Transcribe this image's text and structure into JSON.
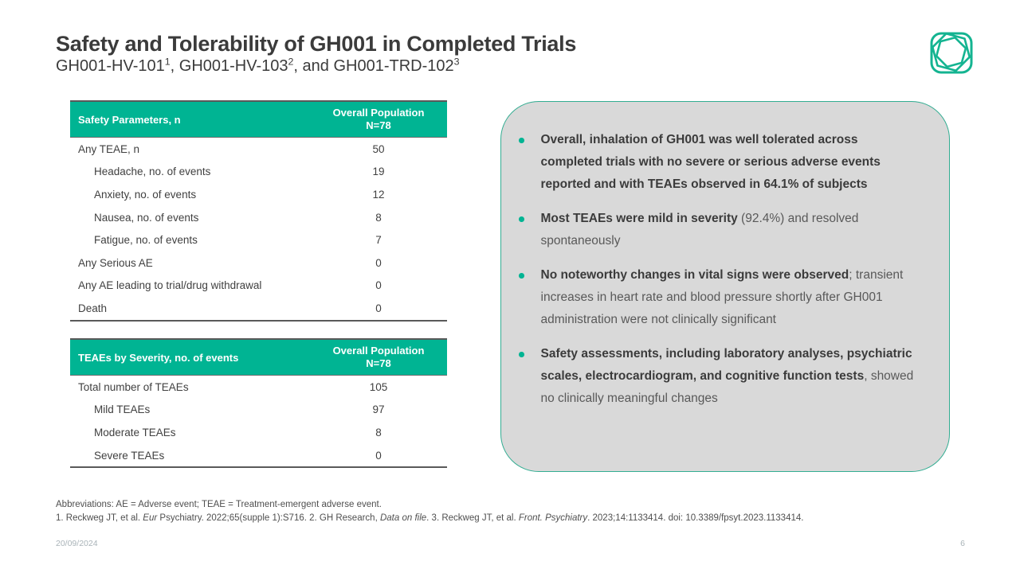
{
  "colors": {
    "accent": "#00B493",
    "callout_fill": "#D9D9D9",
    "callout_border": "#33AD92",
    "text_dark": "#3B3B3B",
    "text_body": "#595959"
  },
  "header": {
    "title": "Safety and Tolerability of GH001 in Completed Trials",
    "subtitle_segments": [
      {
        "t": "GH001-HV-101"
      },
      {
        "t": "1",
        "sup": true
      },
      {
        "t": ", GH001-HV-103"
      },
      {
        "t": "2",
        "sup": true
      },
      {
        "t": ", and GH001-TRD-102"
      },
      {
        "t": "3",
        "sup": true
      }
    ],
    "logo_name": "gh-research-logo"
  },
  "tables": [
    {
      "header": {
        "col1": "Safety Parameters, n",
        "col2_line1": "Overall Population",
        "col2_line2": "N=78"
      },
      "rows": [
        {
          "label": "Any TEAE, n",
          "value": "50",
          "indent": false
        },
        {
          "label": "Headache, no. of events",
          "value": "19",
          "indent": true
        },
        {
          "label": "Anxiety, no. of events",
          "value": "12",
          "indent": true
        },
        {
          "label": "Nausea, no. of events",
          "value": "8",
          "indent": true
        },
        {
          "label": "Fatigue, no. of events",
          "value": "7",
          "indent": true
        },
        {
          "label": "Any Serious AE",
          "value": "0",
          "indent": false
        },
        {
          "label": "Any AE leading to trial/drug withdrawal",
          "value": "0",
          "indent": false
        },
        {
          "label": "Death",
          "value": "0",
          "indent": false
        }
      ]
    },
    {
      "header": {
        "col1": "TEAEs by Severity, no. of events",
        "col2_line1": "Overall Population",
        "col2_line2": "N=78"
      },
      "rows": [
        {
          "label": "Total number of TEAEs",
          "value": "105",
          "indent": false
        },
        {
          "label": "Mild TEAEs",
          "value": "97",
          "indent": true
        },
        {
          "label": "Moderate TEAEs",
          "value": "8",
          "indent": true
        },
        {
          "label": "Severe TEAEs",
          "value": "0",
          "indent": true
        }
      ]
    }
  ],
  "callout": {
    "bullets": [
      {
        "segments": [
          {
            "t": "Overall, inhalation of GH001 was well tolerated across completed trials with no severe or serious adverse events reported and with TEAEs observed in 64.1% of subjects",
            "b": true
          }
        ]
      },
      {
        "segments": [
          {
            "t": "Most TEAEs were mild in severity",
            "b": true
          },
          {
            "t": " (92.4%) and resolved spontaneously"
          }
        ]
      },
      {
        "segments": [
          {
            "t": "No noteworthy changes in vital signs were observed",
            "b": true
          },
          {
            "t": "; transient increases in heart rate and blood pressure shortly after GH001 administration were not clinically significant"
          }
        ]
      },
      {
        "segments": [
          {
            "t": "Safety assessments, including laboratory analyses, psychiatric scales, electrocardiogram, and cognitive function tests",
            "b": true
          },
          {
            "t": ", showed no clinically meaningful changes"
          }
        ]
      }
    ]
  },
  "footnotes": {
    "abbreviations": "Abbreviations: AE = Adverse event; TEAE = Treatment-emergent adverse event.",
    "references_segments": [
      {
        "t": "1. Reckweg JT, et al. "
      },
      {
        "t": "Eur",
        "i": true
      },
      {
        "t": " Psychiatry. 2022;65(supple 1):S716. 2. GH Research, "
      },
      {
        "t": "Data on file",
        "i": true
      },
      {
        "t": ". 3. Reckweg JT, et al. "
      },
      {
        "t": "Front. Psychiatry",
        "i": true
      },
      {
        "t": ". 2023;14:1133414. doi: 10.3389/fpsyt.2023.1133414."
      }
    ]
  },
  "statusbar": {
    "date": "20/09/2024",
    "page": "6"
  }
}
